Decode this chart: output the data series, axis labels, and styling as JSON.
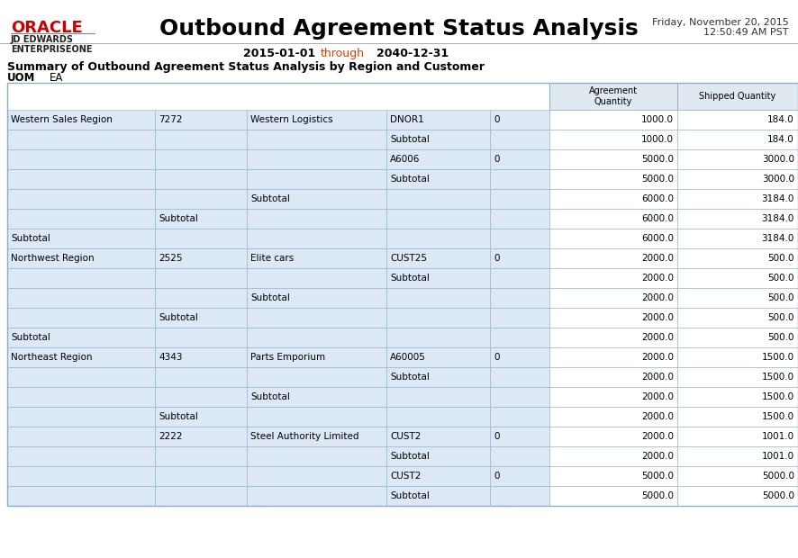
{
  "title": "Outbound Agreement Status Analysis",
  "date_line1": "Friday, November 20, 2015",
  "date_line2": "12:50:49 AM PST",
  "date_range_start": "2015-01-01",
  "date_range_through": "through",
  "date_range_end": "2040-12-31",
  "summary_title": "Summary of Outbound Agreement Status Analysis by Region and Customer",
  "uom_label": "UOM",
  "uom_value": "EA",
  "col_headers": [
    "Agreement\nQuantity",
    "Shipped Quantity"
  ],
  "header_bg": "#e0e8f0",
  "row_bg": "#dce8f5",
  "white_bg": "#ffffff",
  "border_color": "#8aafc8",
  "oracle_red": "#cc0000",
  "rows": [
    {
      "col0": "Western Sales Region",
      "col1": "7272",
      "col2": "Western Logistics",
      "col3": "DNOR1",
      "col4": "0",
      "col5": "1000.0",
      "col6": "184.0"
    },
    {
      "col0": "",
      "col1": "",
      "col2": "",
      "col3": "Subtotal",
      "col4": "",
      "col5": "1000.0",
      "col6": "184.0"
    },
    {
      "col0": "",
      "col1": "",
      "col2": "",
      "col3": "A6006",
      "col4": "0",
      "col5": "5000.0",
      "col6": "3000.0"
    },
    {
      "col0": "",
      "col1": "",
      "col2": "",
      "col3": "Subtotal",
      "col4": "",
      "col5": "5000.0",
      "col6": "3000.0"
    },
    {
      "col0": "",
      "col1": "",
      "col2": "Subtotal",
      "col3": "",
      "col4": "",
      "col5": "6000.0",
      "col6": "3184.0"
    },
    {
      "col0": "",
      "col1": "Subtotal",
      "col2": "",
      "col3": "",
      "col4": "",
      "col5": "6000.0",
      "col6": "3184.0"
    },
    {
      "col0": "Subtotal",
      "col1": "",
      "col2": "",
      "col3": "",
      "col4": "",
      "col5": "6000.0",
      "col6": "3184.0"
    },
    {
      "col0": "Northwest Region",
      "col1": "2525",
      "col2": "Elite cars",
      "col3": "CUST25",
      "col4": "0",
      "col5": "2000.0",
      "col6": "500.0"
    },
    {
      "col0": "",
      "col1": "",
      "col2": "",
      "col3": "Subtotal",
      "col4": "",
      "col5": "2000.0",
      "col6": "500.0"
    },
    {
      "col0": "",
      "col1": "",
      "col2": "Subtotal",
      "col3": "",
      "col4": "",
      "col5": "2000.0",
      "col6": "500.0"
    },
    {
      "col0": "",
      "col1": "Subtotal",
      "col2": "",
      "col3": "",
      "col4": "",
      "col5": "2000.0",
      "col6": "500.0"
    },
    {
      "col0": "Subtotal",
      "col1": "",
      "col2": "",
      "col3": "",
      "col4": "",
      "col5": "2000.0",
      "col6": "500.0"
    },
    {
      "col0": "Northeast Region",
      "col1": "4343",
      "col2": "Parts Emporium",
      "col3": "A60005",
      "col4": "0",
      "col5": "2000.0",
      "col6": "1500.0"
    },
    {
      "col0": "",
      "col1": "",
      "col2": "",
      "col3": "Subtotal",
      "col4": "",
      "col5": "2000.0",
      "col6": "1500.0"
    },
    {
      "col0": "",
      "col1": "",
      "col2": "Subtotal",
      "col3": "",
      "col4": "",
      "col5": "2000.0",
      "col6": "1500.0"
    },
    {
      "col0": "",
      "col1": "Subtotal",
      "col2": "",
      "col3": "",
      "col4": "",
      "col5": "2000.0",
      "col6": "1500.0"
    },
    {
      "col0": "",
      "col1": "2222",
      "col2": "Steel Authority Limited",
      "col3": "CUST2",
      "col4": "0",
      "col5": "2000.0",
      "col6": "1001.0"
    },
    {
      "col0": "",
      "col1": "",
      "col2": "",
      "col3": "Subtotal",
      "col4": "",
      "col5": "2000.0",
      "col6": "1001.0"
    },
    {
      "col0": "",
      "col1": "",
      "col2": "",
      "col3": "CUST2",
      "col4": "0",
      "col5": "5000.0",
      "col6": "5000.0"
    },
    {
      "col0": "",
      "col1": "",
      "col2": "",
      "col3": "Subtotal",
      "col4": "",
      "col5": "5000.0",
      "col6": "5000.0"
    }
  ]
}
